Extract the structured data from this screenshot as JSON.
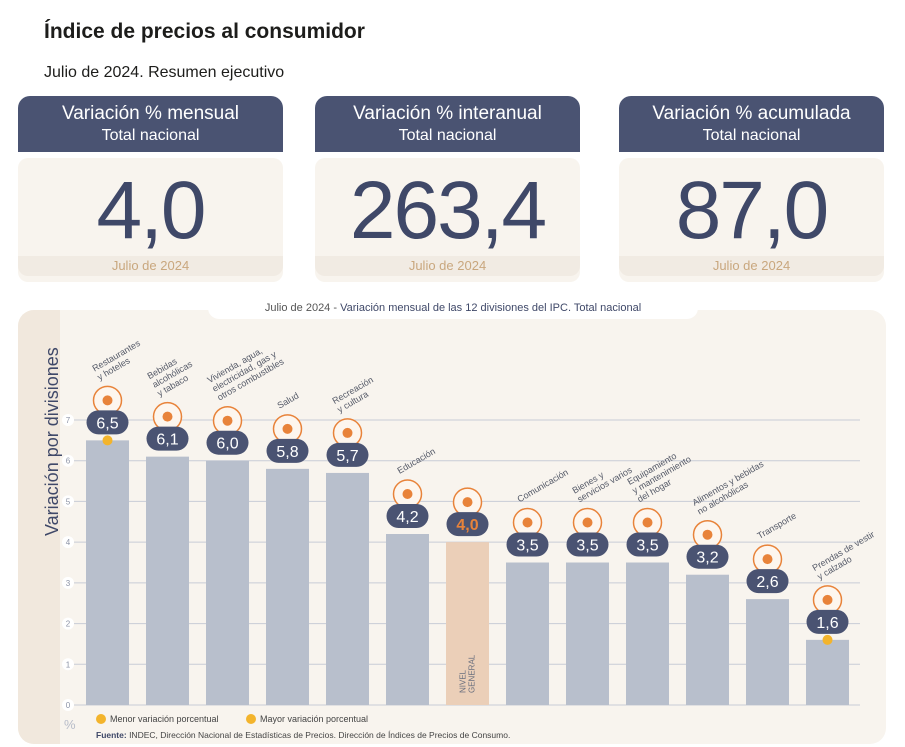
{
  "header": {
    "title": "Índice de precios al consumidor",
    "subtitle": "Julio de 2024. Resumen ejecutivo"
  },
  "cards": [
    {
      "title": "Variación % mensual",
      "subtitle": "Total nacional",
      "value": "4,0",
      "period": "Julio de 2024"
    },
    {
      "title": "Variación % interanual",
      "subtitle": "Total nacional",
      "value": "263,4",
      "period": "Julio de 2024"
    },
    {
      "title": "Variación % acumulada",
      "subtitle": "Total nacional",
      "value": "87,0",
      "period": "Julio de 2024"
    }
  ],
  "chart_caption": {
    "period": "Julio de 2024",
    "separator": " - ",
    "text": "Variación mensual de las 12 divisiones del IPC. Total nacional"
  },
  "legend": {
    "min": "Menor variación porcentual",
    "max": "Mayor variación porcentual"
  },
  "source": {
    "label": "Fuente:",
    "text": " INDEC, Dirección Nacional de Estadísticas de Precios. Dirección de Índices de Precios de Consumo."
  },
  "colors": {
    "bar": "#b8bfcc",
    "bar_general": "#ebcfb8",
    "badge": "#4a5372",
    "badge_general_text": "#e8833a",
    "highlight_dot": "#f3b42c",
    "icon": "#e8833a"
  },
  "chart_data": {
    "type": "bar",
    "ylabel": "Variación por divisiones",
    "yunit": "%",
    "ylim": [
      0,
      7
    ],
    "yticks": [
      0,
      1,
      2,
      3,
      4,
      5,
      6,
      7
    ],
    "grid": true,
    "general_bar_label": [
      "NIVEL",
      "GENERAL"
    ],
    "categories": [
      {
        "lines": [
          "Restaurantes",
          "y hoteles"
        ],
        "value": 6.5,
        "label": "6,5",
        "icon": "restaurant-icon",
        "marker": "max"
      },
      {
        "lines": [
          "Bebidas",
          "alcohólicas",
          "y tabaco"
        ],
        "value": 6.1,
        "label": "6,1",
        "icon": "drinks-tobacco-icon"
      },
      {
        "lines": [
          "Vivienda, agua,",
          "electricidad, gas y",
          "otros combustibles"
        ],
        "value": 6.0,
        "label": "6,0",
        "icon": "lightbulb-icon"
      },
      {
        "lines": [
          "Salud"
        ],
        "value": 5.8,
        "label": "5,8",
        "icon": "health-cross-icon"
      },
      {
        "lines": [
          "Recreación",
          "y cultura"
        ],
        "value": 5.7,
        "label": "5,7",
        "icon": "beach-umbrella-icon"
      },
      {
        "lines": [
          "Educación"
        ],
        "value": 4.2,
        "label": "4,2",
        "icon": "books-icon"
      },
      {
        "lines": [],
        "value": 4.0,
        "label": "4,0",
        "icon": "shopping-bag-icon",
        "general": true
      },
      {
        "lines": [
          "Comunicación"
        ],
        "value": 3.5,
        "label": "3,5",
        "icon": "mobile-phone-icon"
      },
      {
        "lines": [
          "Bienes y",
          "servicios varios"
        ],
        "value": 3.5,
        "label": "3,5",
        "icon": "comb-scissors-icon"
      },
      {
        "lines": [
          "Equipamiento",
          "y mantenimiento",
          "del hogar"
        ],
        "value": 3.5,
        "label": "3,5",
        "icon": "home-appliance-icon"
      },
      {
        "lines": [
          "Alimentos y bebidas",
          "no alcohólicas"
        ],
        "value": 3.2,
        "label": "3,2",
        "icon": "groceries-icon"
      },
      {
        "lines": [
          "Transporte"
        ],
        "value": 2.6,
        "label": "2,6",
        "icon": "transport-card-icon"
      },
      {
        "lines": [
          "Prendas de vestir",
          "y calzado"
        ],
        "value": 1.6,
        "label": "1,6",
        "icon": "tshirt-icon",
        "marker": "min"
      }
    ]
  }
}
